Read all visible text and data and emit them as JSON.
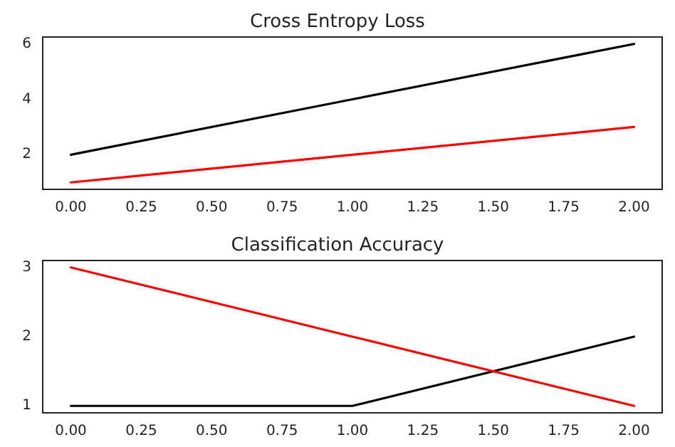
{
  "chart_data": [
    {
      "type": "line",
      "title": "Cross Entropy Loss",
      "x": [
        0,
        1,
        2
      ],
      "series": [
        {
          "color": "#000000",
          "values": [
            2,
            4,
            6
          ]
        },
        {
          "color": "#ff0000",
          "values": [
            1,
            2,
            3
          ]
        }
      ],
      "xlim": [
        -0.1,
        2.1
      ],
      "ylim": [
        0.75,
        6.25
      ],
      "xticks": [
        {
          "value": 0,
          "label": "0.00"
        },
        {
          "value": 0.25,
          "label": "0.25"
        },
        {
          "value": 0.5,
          "label": "0.50"
        },
        {
          "value": 0.75,
          "label": "0.75"
        },
        {
          "value": 1,
          "label": "1.00"
        },
        {
          "value": 1.25,
          "label": "1.25"
        },
        {
          "value": 1.5,
          "label": "1.50"
        },
        {
          "value": 1.75,
          "label": "1.75"
        },
        {
          "value": 2,
          "label": "2.00"
        }
      ],
      "yticks": [
        2,
        4,
        6
      ],
      "grid": false,
      "marker": "none",
      "line_style": "solid"
    },
    {
      "type": "line",
      "title": "Classification Accuracy",
      "x": [
        0,
        1,
        2
      ],
      "series": [
        {
          "color": "#000000",
          "values": [
            1,
            1,
            2
          ]
        },
        {
          "color": "#ff0000",
          "values": [
            3,
            2,
            1
          ]
        }
      ],
      "xlim": [
        -0.1,
        2.1
      ],
      "ylim": [
        0.9,
        3.1
      ],
      "xticks": [
        {
          "value": 0,
          "label": "0.00"
        },
        {
          "value": 0.25,
          "label": "0.25"
        },
        {
          "value": 0.5,
          "label": "0.50"
        },
        {
          "value": 0.75,
          "label": "0.75"
        },
        {
          "value": 1,
          "label": "1.00"
        },
        {
          "value": 1.25,
          "label": "1.25"
        },
        {
          "value": 1.5,
          "label": "1.50"
        },
        {
          "value": 1.75,
          "label": "1.75"
        },
        {
          "value": 2,
          "label": "2.00"
        }
      ],
      "yticks": [
        1,
        2,
        3
      ],
      "grid": false,
      "marker": "none",
      "line_style": "solid"
    }
  ]
}
